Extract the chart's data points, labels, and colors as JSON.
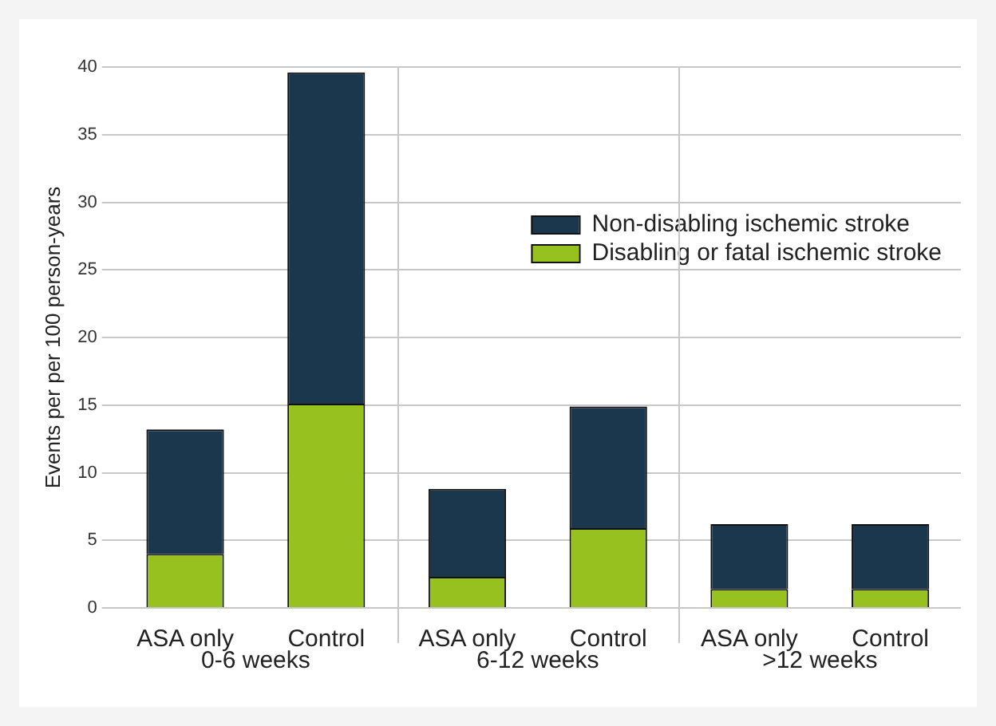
{
  "chart_data": {
    "type": "bar",
    "stacked": true,
    "ylabel": "Events per per 100 person-years",
    "categories": [
      "ASA only",
      "Control",
      "ASA only",
      "Control",
      "ASA only",
      "Control"
    ],
    "series": [
      {
        "name": "Disabling or fatal ischemic stroke",
        "color": "#97c11f",
        "values": [
          4.0,
          15.1,
          2.3,
          5.9,
          1.4,
          1.4
        ]
      },
      {
        "name": "Non-disabling ischemic stroke",
        "color": "#1b374e",
        "values": [
          9.2,
          24.5,
          6.5,
          9.0,
          4.8,
          4.8
        ]
      }
    ],
    "ylim": [
      0,
      40
    ],
    "yticks": [
      0,
      5,
      10,
      15,
      20,
      25,
      30,
      35,
      40
    ],
    "grid": "y",
    "legend": "top right",
    "annotations": [
      "0-6 weeks",
      "6-12 weeks",
      ">12 weeks"
    ]
  }
}
